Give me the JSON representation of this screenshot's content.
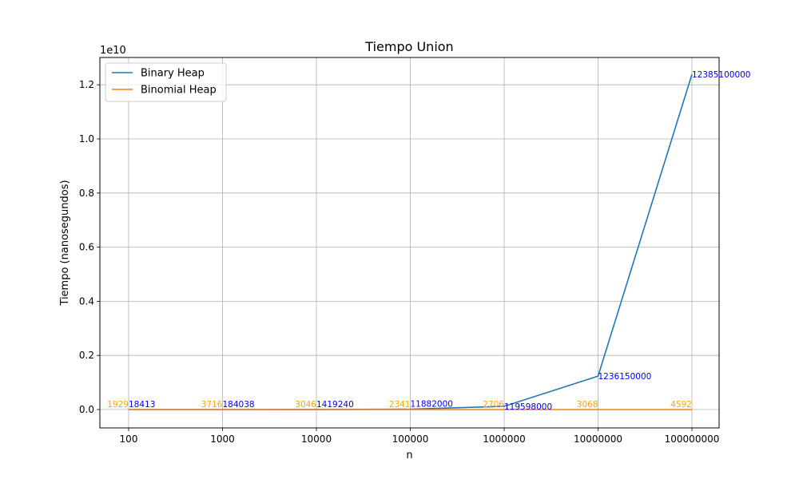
{
  "chart_data": {
    "type": "line",
    "title": "Tiempo Union",
    "xlabel": "n",
    "ylabel": "Tiempo (nanosegundos)",
    "y_scale_label": "1e10",
    "categories": [
      "100",
      "1000",
      "10000",
      "100000",
      "1000000",
      "10000000",
      "100000000"
    ],
    "yticks": [
      "0.0",
      "0.2",
      "0.4",
      "0.6",
      "0.8",
      "1.0",
      "1.2"
    ],
    "ylim": [
      -0.05,
      1.3
    ],
    "y_units": "1e10 nanosegundos",
    "grid": true,
    "legend_position": "top-left",
    "series": [
      {
        "name": "Binary Heap",
        "color": "#1f77b4",
        "label_color": "#0000ff",
        "values": [
          18413,
          184038,
          1419240,
          11882000,
          119598000,
          1236150000,
          12385100000
        ],
        "labels": [
          "18413",
          "184038",
          "1419240",
          "11882000",
          "119598000",
          "1236150000",
          "12385100000"
        ]
      },
      {
        "name": "Binomial Heap",
        "color": "#ff7f0e",
        "label_color": "#ffa500",
        "values": [
          1929,
          3716,
          3046,
          2341,
          2706,
          3068,
          4592
        ],
        "labels": [
          "1929",
          "3716",
          "3046",
          "2341",
          "2706",
          "3068",
          "4592"
        ]
      }
    ]
  }
}
